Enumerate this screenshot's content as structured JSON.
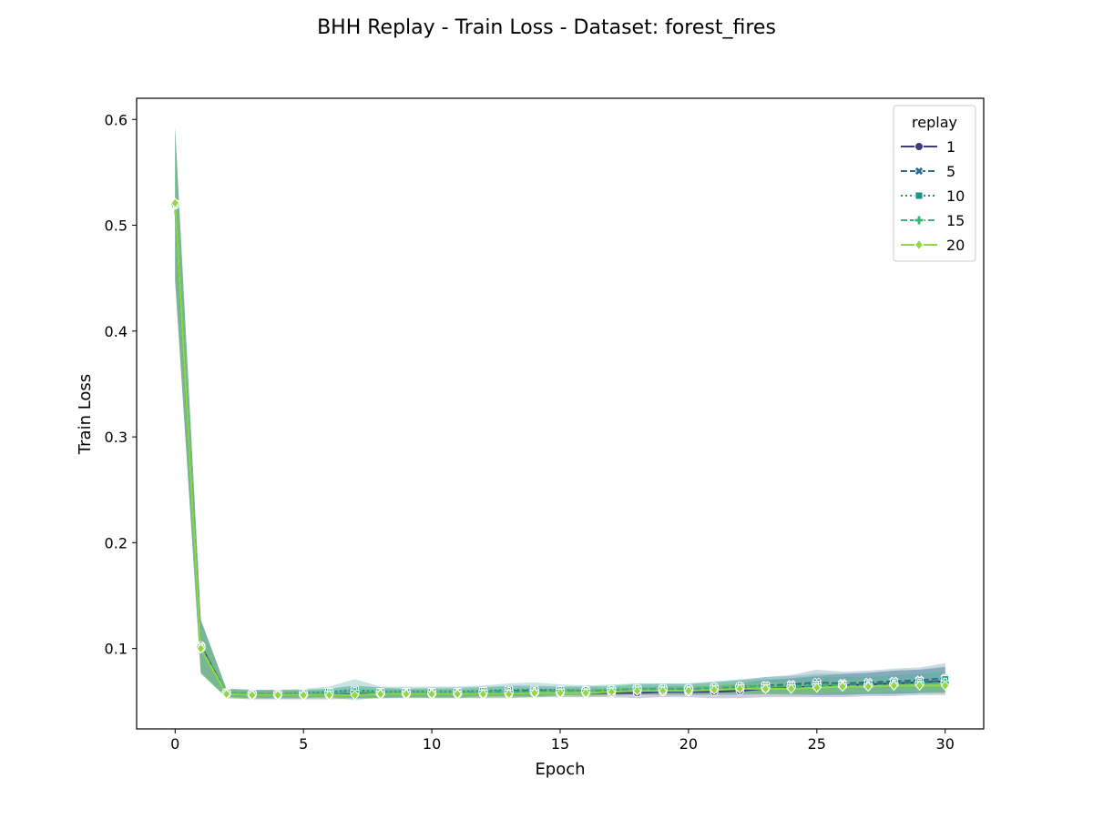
{
  "chart_data": {
    "type": "line",
    "title": "BHH Replay - Train Loss - Dataset: forest_fires",
    "xlabel": "Epoch",
    "ylabel": "Train Loss",
    "xlim": [
      -1.5,
      31.5
    ],
    "ylim": [
      0.024,
      0.62
    ],
    "xticks": [
      0,
      5,
      10,
      15,
      20,
      25,
      30
    ],
    "xtick_labels": [
      "0",
      "5",
      "10",
      "15",
      "20",
      "25",
      "30"
    ],
    "yticks": [
      0.1,
      0.2,
      0.3,
      0.4,
      0.5,
      0.6
    ],
    "ytick_labels": [
      "0.1",
      "0.2",
      "0.3",
      "0.4",
      "0.5",
      "0.6"
    ],
    "grid": false,
    "legend": {
      "title": "replay",
      "placement": "top-right"
    },
    "x": [
      0,
      1,
      2,
      3,
      4,
      5,
      6,
      7,
      8,
      9,
      10,
      11,
      12,
      13,
      14,
      15,
      16,
      17,
      18,
      19,
      20,
      21,
      22,
      23,
      24,
      25,
      26,
      27,
      28,
      29,
      30
    ],
    "series": [
      {
        "name": "1",
        "color": "#3e3a84",
        "dash": "solid",
        "marker": "circle",
        "values": [
          0.519,
          0.103,
          0.057,
          0.056,
          0.056,
          0.056,
          0.056,
          0.057,
          0.057,
          0.057,
          0.057,
          0.057,
          0.057,
          0.057,
          0.058,
          0.058,
          0.058,
          0.058,
          0.058,
          0.059,
          0.059,
          0.059,
          0.06,
          0.062,
          0.063,
          0.064,
          0.065,
          0.066,
          0.067,
          0.068,
          0.069
        ],
        "band_halfwidth": [
          0.072,
          0.025,
          0.004,
          0.004,
          0.004,
          0.004,
          0.004,
          0.004,
          0.004,
          0.004,
          0.004,
          0.004,
          0.004,
          0.004,
          0.004,
          0.004,
          0.004,
          0.004,
          0.005,
          0.005,
          0.005,
          0.006,
          0.007,
          0.008,
          0.009,
          0.01,
          0.011,
          0.011,
          0.012,
          0.012,
          0.013
        ]
      },
      {
        "name": "5",
        "color": "#2f6b8e",
        "dash": "dashed",
        "marker": "x",
        "values": [
          0.52,
          0.102,
          0.058,
          0.057,
          0.057,
          0.057,
          0.058,
          0.059,
          0.058,
          0.058,
          0.058,
          0.058,
          0.059,
          0.06,
          0.06,
          0.06,
          0.06,
          0.06,
          0.061,
          0.061,
          0.061,
          0.062,
          0.063,
          0.065,
          0.066,
          0.068,
          0.067,
          0.068,
          0.069,
          0.07,
          0.072
        ],
        "band_halfwidth": [
          0.072,
          0.025,
          0.004,
          0.004,
          0.004,
          0.004,
          0.004,
          0.006,
          0.005,
          0.004,
          0.004,
          0.004,
          0.004,
          0.005,
          0.005,
          0.004,
          0.004,
          0.004,
          0.005,
          0.005,
          0.005,
          0.006,
          0.007,
          0.008,
          0.009,
          0.012,
          0.011,
          0.011,
          0.012,
          0.012,
          0.014
        ]
      },
      {
        "name": "10",
        "color": "#21908c",
        "dash": "dotted",
        "marker": "square",
        "values": [
          0.52,
          0.101,
          0.058,
          0.057,
          0.057,
          0.058,
          0.059,
          0.061,
          0.059,
          0.059,
          0.059,
          0.059,
          0.06,
          0.061,
          0.061,
          0.061,
          0.06,
          0.061,
          0.062,
          0.062,
          0.062,
          0.063,
          0.064,
          0.065,
          0.065,
          0.066,
          0.066,
          0.067,
          0.068,
          0.069,
          0.071
        ],
        "band_halfwidth": [
          0.072,
          0.025,
          0.004,
          0.004,
          0.004,
          0.004,
          0.005,
          0.01,
          0.005,
          0.005,
          0.005,
          0.005,
          0.005,
          0.006,
          0.007,
          0.005,
          0.005,
          0.005,
          0.005,
          0.005,
          0.005,
          0.006,
          0.007,
          0.008,
          0.009,
          0.01,
          0.01,
          0.01,
          0.011,
          0.011,
          0.012
        ]
      },
      {
        "name": "15",
        "color": "#35b779",
        "dash": "dashed",
        "marker": "plus",
        "values": [
          0.52,
          0.101,
          0.058,
          0.057,
          0.057,
          0.057,
          0.058,
          0.059,
          0.058,
          0.058,
          0.058,
          0.058,
          0.059,
          0.059,
          0.059,
          0.06,
          0.06,
          0.061,
          0.062,
          0.062,
          0.062,
          0.063,
          0.064,
          0.064,
          0.064,
          0.065,
          0.065,
          0.065,
          0.066,
          0.067,
          0.068
        ],
        "band_halfwidth": [
          0.072,
          0.025,
          0.004,
          0.004,
          0.004,
          0.004,
          0.004,
          0.006,
          0.005,
          0.004,
          0.005,
          0.005,
          0.005,
          0.005,
          0.005,
          0.004,
          0.004,
          0.004,
          0.005,
          0.005,
          0.005,
          0.005,
          0.006,
          0.007,
          0.007,
          0.008,
          0.008,
          0.008,
          0.009,
          0.009,
          0.01
        ]
      },
      {
        "name": "20",
        "color": "#90d743",
        "dash": "solid",
        "marker": "diamond",
        "values": [
          0.521,
          0.1,
          0.057,
          0.056,
          0.056,
          0.056,
          0.056,
          0.056,
          0.057,
          0.057,
          0.057,
          0.057,
          0.057,
          0.057,
          0.058,
          0.058,
          0.058,
          0.059,
          0.06,
          0.06,
          0.06,
          0.061,
          0.062,
          0.062,
          0.062,
          0.063,
          0.064,
          0.064,
          0.065,
          0.065,
          0.065
        ],
        "band_halfwidth": [
          0.07,
          0.024,
          0.004,
          0.004,
          0.004,
          0.004,
          0.004,
          0.004,
          0.004,
          0.004,
          0.004,
          0.004,
          0.004,
          0.004,
          0.004,
          0.004,
          0.004,
          0.004,
          0.004,
          0.004,
          0.004,
          0.005,
          0.005,
          0.006,
          0.006,
          0.006,
          0.006,
          0.006,
          0.006,
          0.006,
          0.007
        ]
      }
    ]
  }
}
